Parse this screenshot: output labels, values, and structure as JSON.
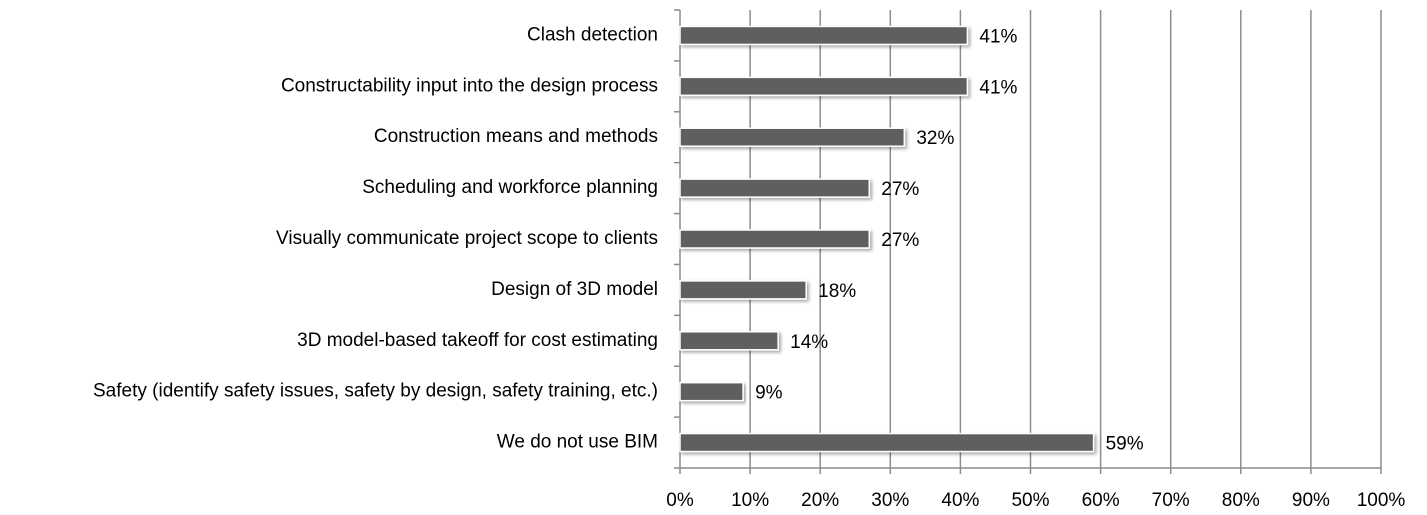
{
  "chart_data": {
    "type": "barh",
    "categories": [
      "Clash detection",
      "Constructability input into the design process",
      "Construction means and methods",
      "Scheduling and workforce planning",
      "Visually communicate project scope to clients",
      "Design of 3D model",
      "3D model-based takeoff for cost estimating",
      "Safety (identify safety issues, safety by design, safety training, etc.)",
      "We do not use BIM"
    ],
    "values": [
      41,
      41,
      32,
      27,
      27,
      18,
      14,
      9,
      59
    ],
    "value_labels": [
      "41%",
      "41%",
      "32%",
      "27%",
      "27%",
      "18%",
      "14%",
      "9%",
      "59%"
    ],
    "color": "#5f5f5f",
    "xlim": [
      0,
      100
    ],
    "xticks": [
      {
        "value": 0,
        "label": "0%"
      },
      {
        "value": 10,
        "label": "10%"
      },
      {
        "value": 20,
        "label": "20%"
      },
      {
        "value": 30,
        "label": "30%"
      },
      {
        "value": 40,
        "label": "40%"
      },
      {
        "value": 50,
        "label": "50%"
      },
      {
        "value": 60,
        "label": "60%"
      },
      {
        "value": 70,
        "label": "70%"
      },
      {
        "value": 80,
        "label": "80%"
      },
      {
        "value": 90,
        "label": "90%"
      },
      {
        "value": 100,
        "label": "100%"
      }
    ],
    "grid": true
  }
}
